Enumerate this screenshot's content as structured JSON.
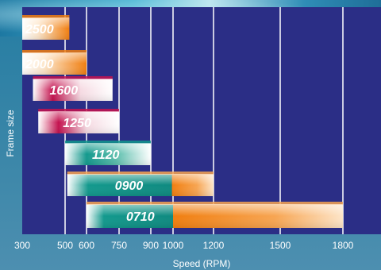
{
  "chart_data": {
    "type": "bar",
    "orientation": "horizontal",
    "xlabel": "Speed (RPM)",
    "ylabel": "Frame size",
    "x_ticks": [
      300,
      500,
      600,
      750,
      900,
      1000,
      1200,
      1500,
      1800
    ],
    "xlim": [
      300,
      1900
    ],
    "grid": true,
    "categories": [
      "2500",
      "2000",
      "1600",
      "1250",
      "1120",
      "0900",
      "0710"
    ],
    "bars": [
      {
        "label": "2500",
        "start": 300,
        "end": 520,
        "color": "#f07e10"
      },
      {
        "label": "2000",
        "start": 300,
        "end": 600,
        "color": "#f07e10"
      },
      {
        "label": "1600",
        "start": 350,
        "end": 720,
        "color": "#c4124f"
      },
      {
        "label": "1250",
        "start": 375,
        "end": 750,
        "color": "#c4124f"
      },
      {
        "label": "1120",
        "start": 500,
        "end": 900,
        "color": "#12958c"
      },
      {
        "label": "0900",
        "start": 510,
        "end": 1200,
        "color": "#12958c",
        "color2": "#f07e10",
        "split": 995
      },
      {
        "label": "0710",
        "start": 600,
        "end": 1800,
        "color": "#12958c",
        "color2": "#f07e10",
        "split": 1000
      }
    ]
  }
}
